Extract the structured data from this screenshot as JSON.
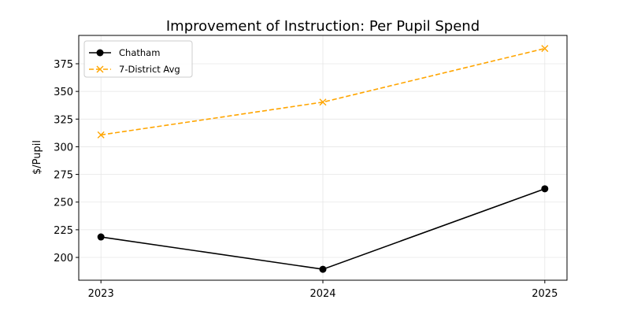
{
  "chart_data": {
    "type": "line",
    "title": "Improvement of Instruction: Per Pupil Spend",
    "xlabel": "",
    "ylabel": "$/Pupil",
    "x": [
      2023,
      2024,
      2025
    ],
    "xlim": [
      2022.9,
      2025.1
    ],
    "ylim": [
      179.4,
      400.6
    ],
    "xticks": [
      "2023",
      "2024",
      "2025"
    ],
    "yticks": [
      200,
      225,
      250,
      275,
      300,
      325,
      350,
      375
    ],
    "grid": true,
    "legend_position": "top-left",
    "series": [
      {
        "name": "Chatham",
        "values": [
          218.5,
          189.3,
          262
        ],
        "color": "#000000",
        "marker": "circle",
        "linestyle": "solid"
      },
      {
        "name": "7-District Avg",
        "values": [
          310.7,
          340.3,
          388.8
        ],
        "color": "#FFA500",
        "marker": "x",
        "linestyle": "dashed"
      }
    ]
  }
}
